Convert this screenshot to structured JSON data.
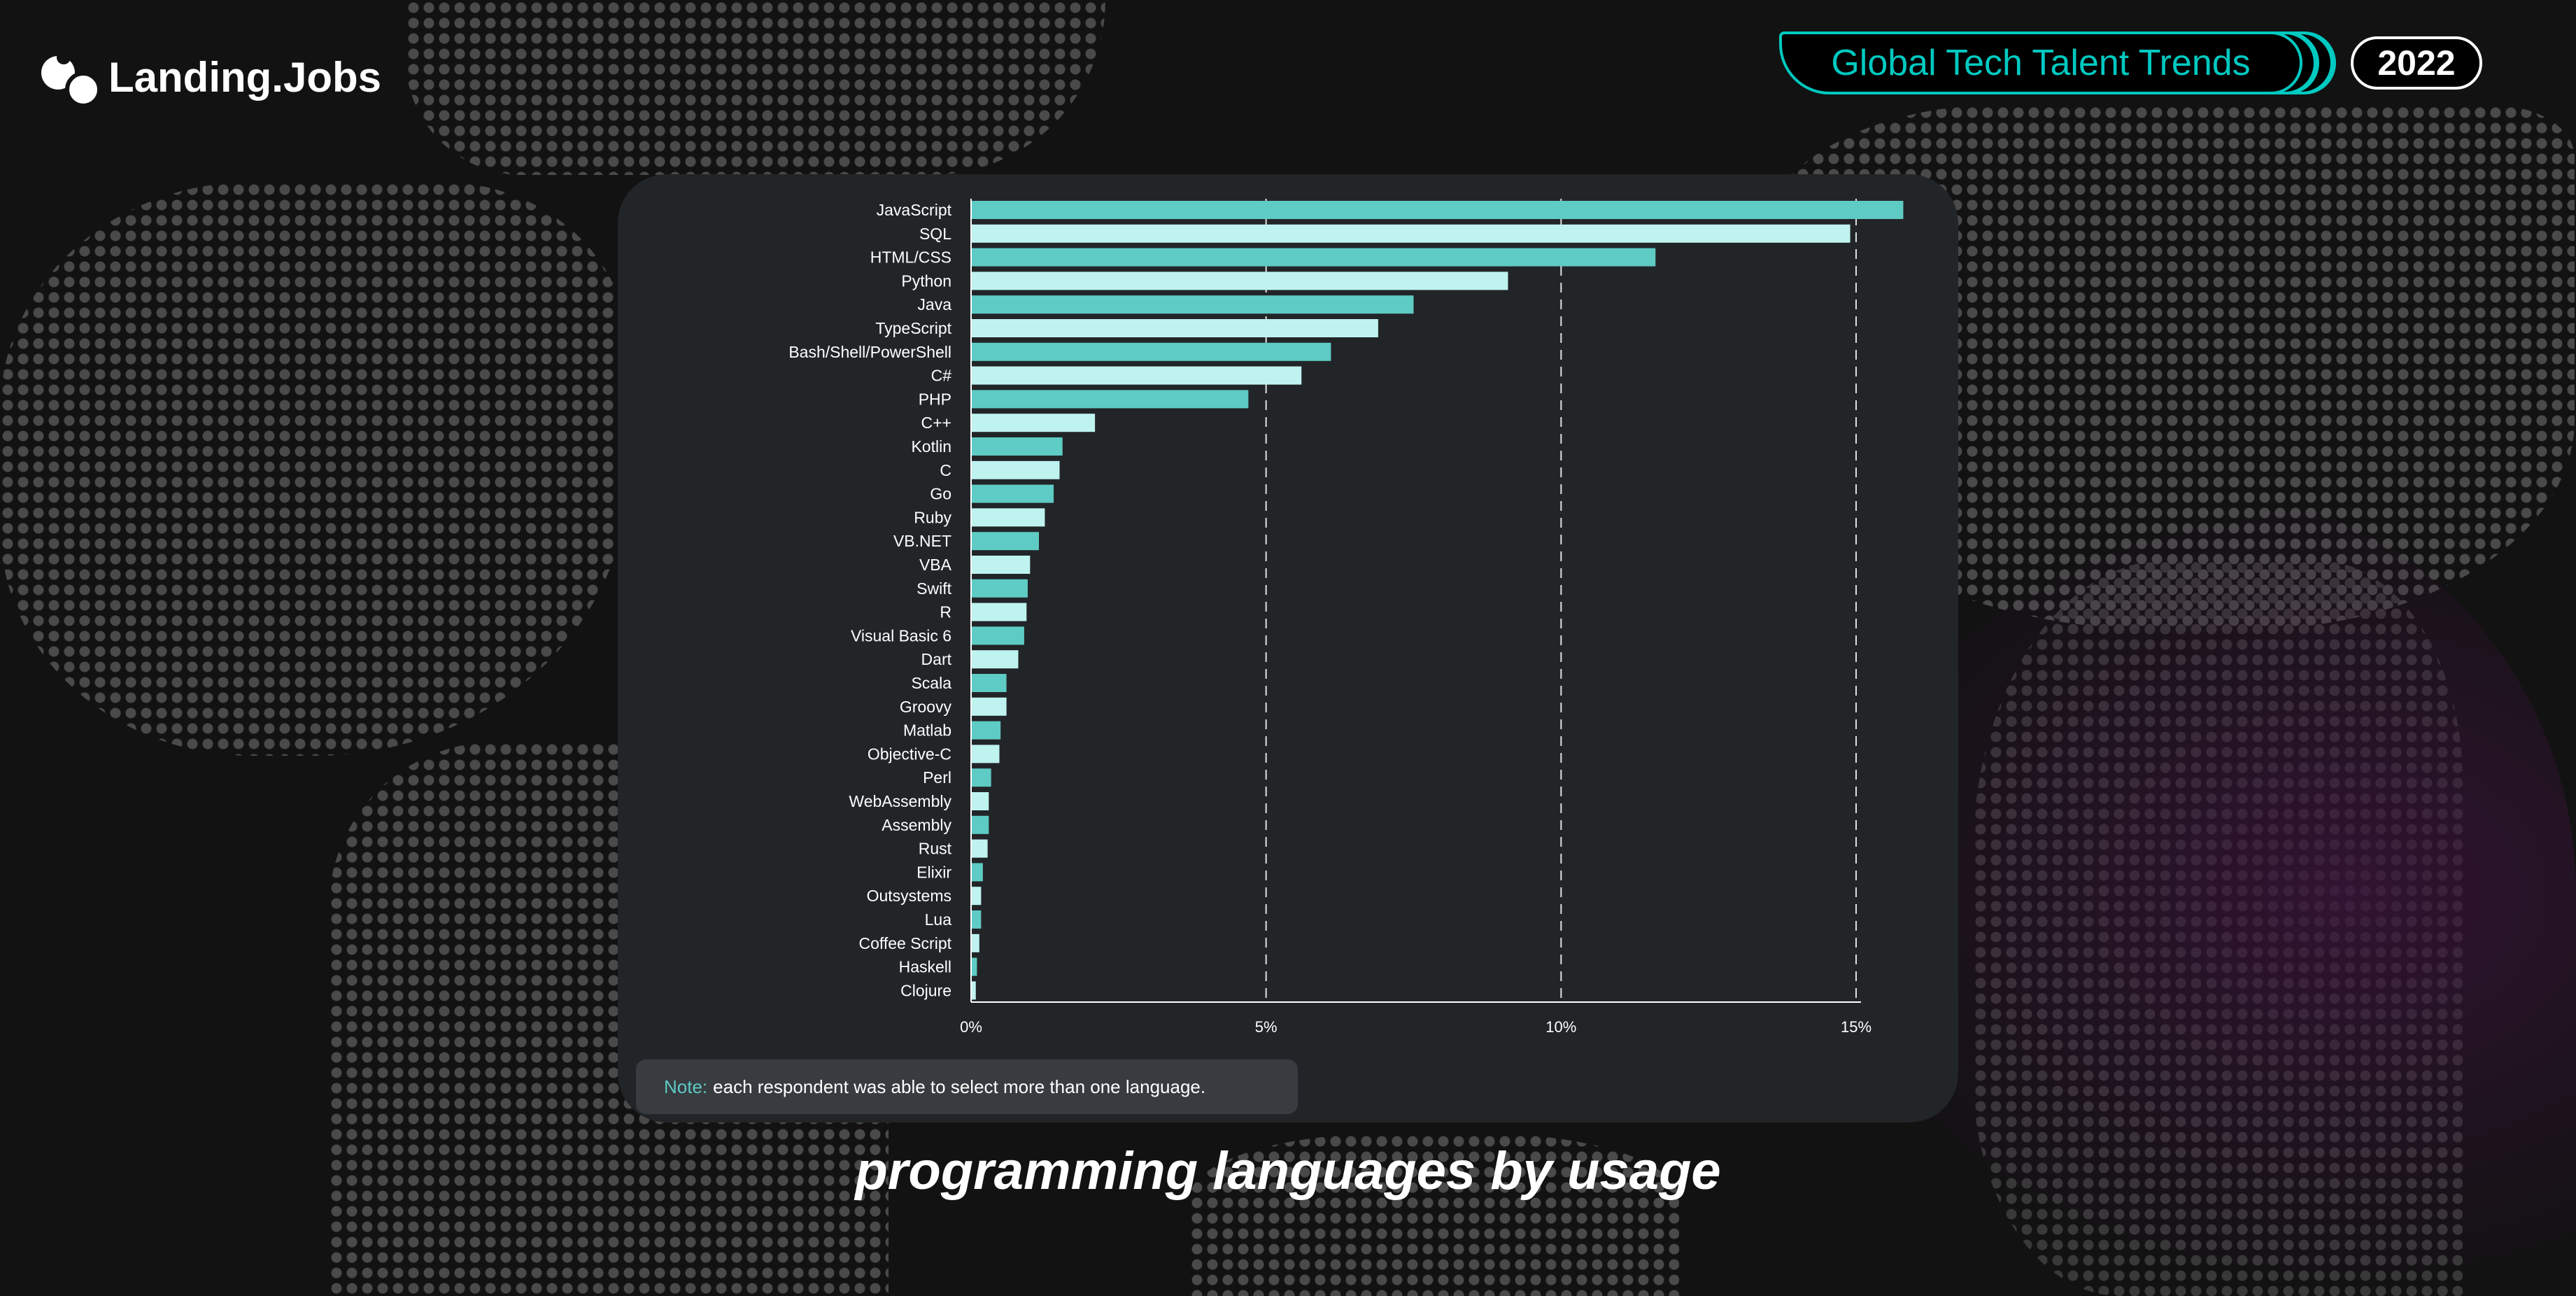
{
  "brand": {
    "name": "Landing.Jobs"
  },
  "header": {
    "report": "Global Tech Talent Trends",
    "year": "2022"
  },
  "note": {
    "label": "Note:",
    "text": "each respondent was able to select more than one language."
  },
  "title": "programming languages by usage",
  "colors": {
    "bar_primary": "#5ecbc4",
    "bar_secondary": "#bff3f0",
    "accent": "#00c9c0",
    "card": "#222528"
  },
  "chart_data": {
    "type": "bar",
    "orientation": "horizontal",
    "title": "programming languages by usage",
    "xlim": [
      0,
      15.9
    ],
    "xticks": [
      0,
      5,
      10,
      15
    ],
    "xtick_labels": [
      "0%",
      "5%",
      "10%",
      "15%"
    ],
    "grid": "vertical dashed",
    "unit": "%",
    "categories": [
      "JavaScript",
      "SQL",
      "HTML/CSS",
      "Python",
      "Java",
      "TypeScript",
      "Bash/Shell/PowerShell",
      "C#",
      "PHP",
      "C++",
      "Kotlin",
      "C",
      "Go",
      "Ruby",
      "VB.NET",
      "VBA",
      "Swift",
      "R",
      "Visual Basic 6",
      "Dart",
      "Scala",
      "Groovy",
      "Matlab",
      "Objective-C",
      "Perl",
      "WebAssembly",
      "Assembly",
      "Rust",
      "Elixir",
      "Outsystems",
      "Lua",
      "Coffee Script",
      "Haskell",
      "Clojure"
    ],
    "values": [
      15.8,
      14.9,
      11.6,
      9.1,
      7.5,
      6.9,
      6.1,
      5.6,
      4.7,
      2.1,
      1.55,
      1.5,
      1.4,
      1.25,
      1.15,
      1.0,
      0.96,
      0.94,
      0.9,
      0.8,
      0.6,
      0.6,
      0.5,
      0.48,
      0.34,
      0.3,
      0.3,
      0.28,
      0.2,
      0.17,
      0.17,
      0.14,
      0.1,
      0.08
    ]
  }
}
